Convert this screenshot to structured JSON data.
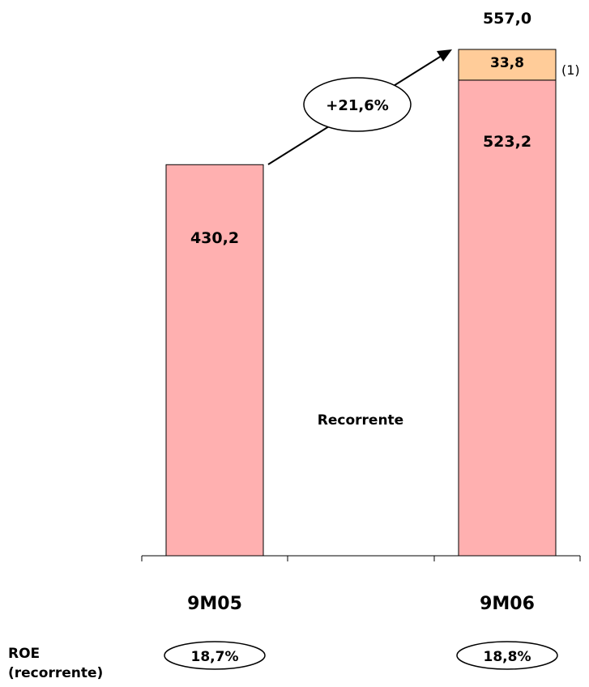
{
  "chart_data": {
    "type": "bar",
    "stacked": true,
    "categories": [
      "9M05",
      "9M06"
    ],
    "series": [
      {
        "values": [
          430.2,
          523.2
        ],
        "data_labels": [
          "430,2",
          "523,2"
        ],
        "color": "#ffb0b0"
      },
      {
        "values": [
          0,
          33.8
        ],
        "data_labels": [
          "",
          "33,8"
        ],
        "color": "#ffcc99"
      }
    ],
    "totals": [
      430.2,
      557.0
    ],
    "total_labels": [
      "",
      "557,0"
    ],
    "inner_label": "Recorrente",
    "footnote_marker": "(1)",
    "growth_label": "+21,6%",
    "ylim": [
      0,
      600
    ],
    "grid": false
  },
  "roe": {
    "title_line1": "ROE",
    "title_line2": "(recorrente)",
    "values": [
      "18,7%",
      "18,8%"
    ]
  }
}
